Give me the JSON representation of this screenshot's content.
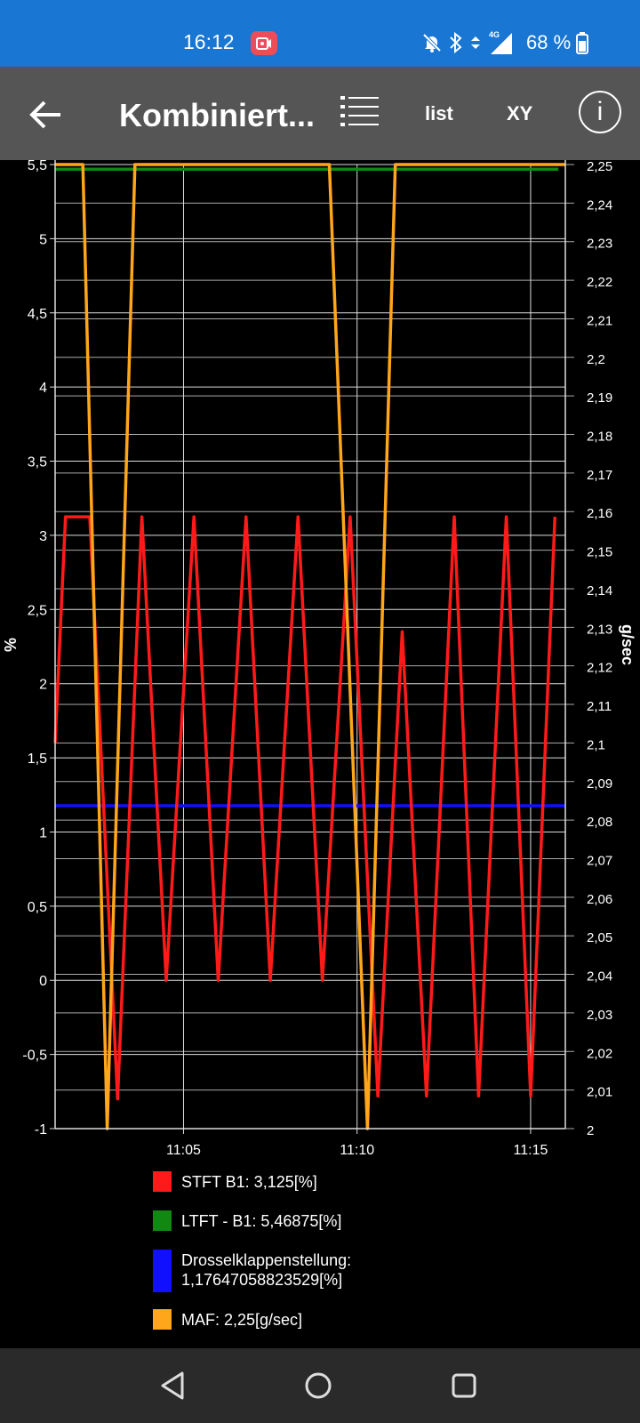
{
  "status_bar": {
    "time": "16:12",
    "icons": [
      "screen-record-icon",
      "bell-off-icon",
      "bluetooth-icon",
      "data-arrows-icon",
      "signal-4g-icon",
      "battery-icon"
    ],
    "network_label": "4G",
    "battery_text": "68 %"
  },
  "app_bar": {
    "title": "Kombiniert...",
    "list_label": "list",
    "xy_label": "XY",
    "info_label": "i"
  },
  "chart_data": {
    "type": "line",
    "ylabel": "%",
    "y2label": "g/sec",
    "y_ticks": [
      "5,5",
      "5",
      "4,5",
      "4",
      "3,5",
      "3",
      "2,5",
      "2",
      "1,5",
      "1",
      "0,5",
      "0",
      "-0,5",
      "-1"
    ],
    "y2_ticks": [
      "2,25",
      "2,24",
      "2,23",
      "2,22",
      "2,21",
      "2,2",
      "2,19",
      "2,18",
      "2,17",
      "2,16",
      "2,15",
      "2,14",
      "2,13",
      "2,12",
      "2,11",
      "2,1",
      "2,09",
      "2,08",
      "2,07",
      "2,06",
      "2,05",
      "2,04",
      "2,03",
      "2,02",
      "2,01",
      "2"
    ],
    "x_ticks": [
      "11:05",
      "11:10",
      "11:15"
    ],
    "ylim": [
      -1,
      5.5
    ],
    "y2lim": [
      2,
      2.25
    ],
    "xlim_minutes": [
      661.3,
      676.0
    ],
    "x_tick_minutes": [
      665,
      670,
      675
    ],
    "grid": true,
    "series": [
      {
        "name": "STFT B1",
        "axis": "left",
        "color": "#ff1a1a",
        "x_minutes": [
          661.3,
          661.6,
          662.3,
          663.1,
          663.8,
          664.5,
          665.3,
          666.0,
          666.8,
          667.5,
          668.3,
          669.0,
          669.8,
          670.6,
          671.3,
          672.0,
          672.8,
          673.5,
          674.3,
          675.0,
          675.7
        ],
        "values": [
          1.6,
          3.125,
          3.125,
          -0.8,
          3.125,
          0,
          3.125,
          0,
          3.125,
          0,
          3.125,
          0,
          3.125,
          -0.78,
          2.35,
          -0.78,
          3.125,
          -0.78,
          3.125,
          -0.78,
          3.125
        ]
      },
      {
        "name": "LTFT - B1",
        "axis": "left",
        "color": "#118811",
        "x_minutes": [
          661.3,
          675.8
        ],
        "values": [
          5.46875,
          5.46875
        ]
      },
      {
        "name": "Drosselklappenstellung",
        "axis": "left",
        "color": "#1010ff",
        "x_minutes": [
          661.3,
          676.0
        ],
        "values": [
          1.17647058823529,
          1.17647058823529
        ]
      },
      {
        "name": "MAF",
        "axis": "right",
        "color": "#ffa61a",
        "x_minutes": [
          661.3,
          662.1,
          662.8,
          663.6,
          669.2,
          670.3,
          671.1,
          676.0
        ],
        "values": [
          2.25,
          2.25,
          2.0,
          2.25,
          2.25,
          2.0,
          2.25,
          2.25
        ]
      }
    ],
    "legend": [
      {
        "color": "#ff1a1a",
        "text": "STFT B1: 3,125[%]"
      },
      {
        "color": "#118811",
        "text": "LTFT - B1: 5,46875[%]"
      },
      {
        "color": "#1010ff",
        "text": "Drosselklappenstellung: 1,17647058823529[%]"
      },
      {
        "color": "#ffa61a",
        "text": "MAF: 2,25[g/sec]"
      }
    ]
  },
  "nav_bar": {
    "icons": [
      "back-triangle-icon",
      "home-circle-icon",
      "recents-square-icon"
    ]
  }
}
